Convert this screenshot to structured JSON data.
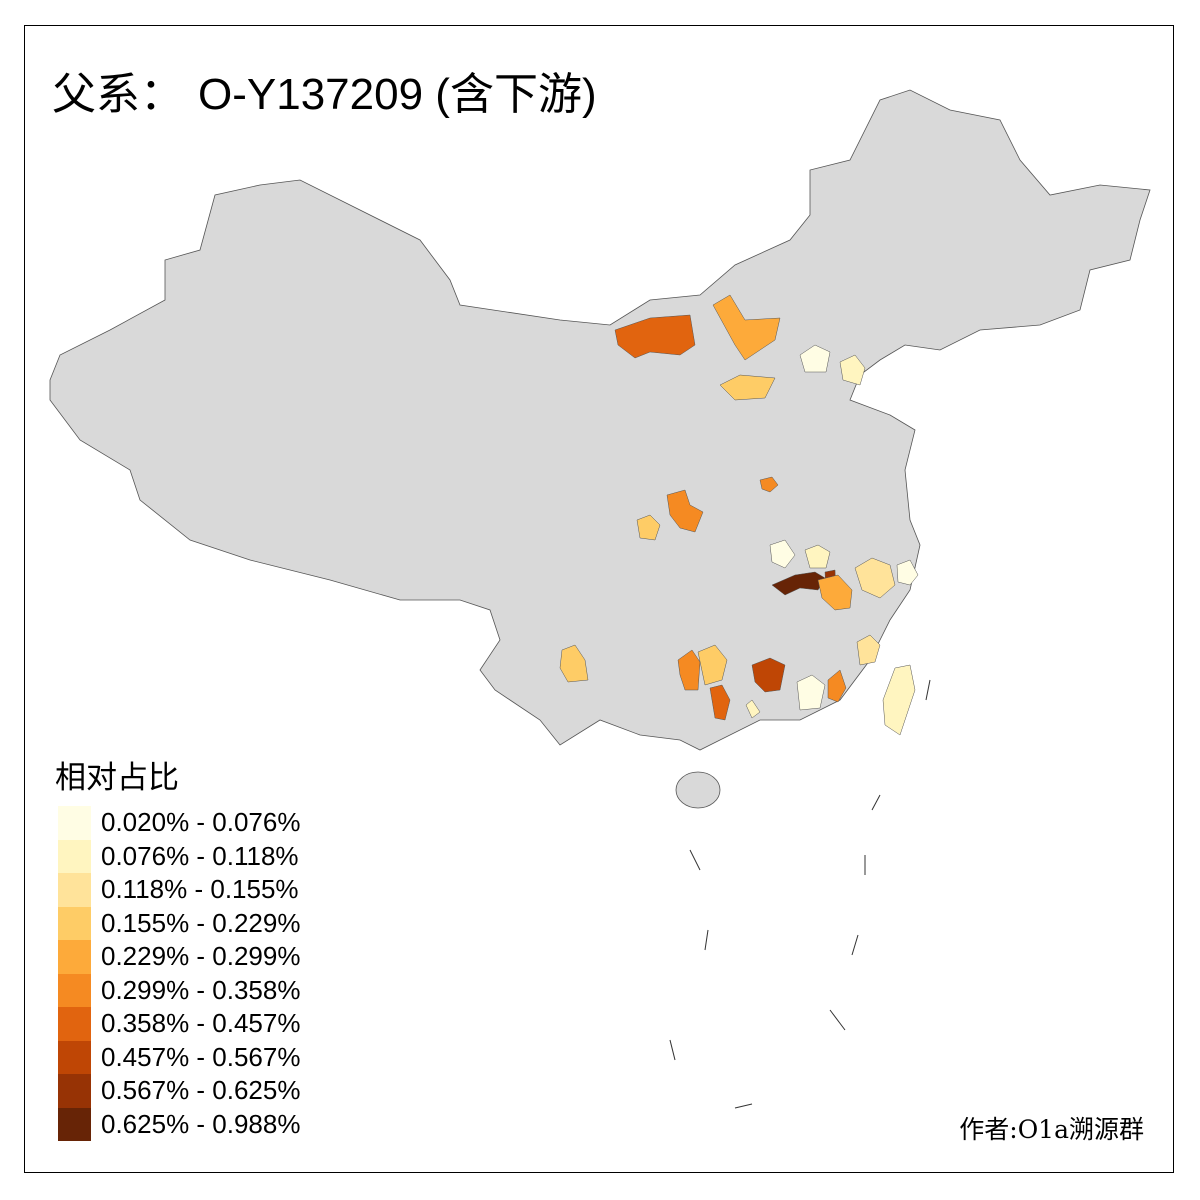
{
  "title": {
    "prefix": "父系：",
    "haplogroup": "O-Y137209",
    "suffix": " (含下游)"
  },
  "legend": {
    "title": "相对占比",
    "classes": [
      {
        "label": "0.020% - 0.076%",
        "color": "#FFFDE4"
      },
      {
        "label": "0.076% - 0.118%",
        "color": "#FFF5C0"
      },
      {
        "label": "0.118% - 0.155%",
        "color": "#FFE39A"
      },
      {
        "label": "0.155% - 0.229%",
        "color": "#FECC66"
      },
      {
        "label": "0.229% - 0.299%",
        "color": "#FDAA3A"
      },
      {
        "label": "0.299% - 0.358%",
        "color": "#F58A22"
      },
      {
        "label": "0.358% - 0.457%",
        "color": "#E1640F"
      },
      {
        "label": "0.457% - 0.567%",
        "color": "#BF4605"
      },
      {
        "label": "0.567% - 0.625%",
        "color": "#973305"
      },
      {
        "label": "0.625% - 0.988%",
        "color": "#672406"
      }
    ]
  },
  "map": {
    "no_data_color": "#D9D9D9",
    "border_color": "#555555",
    "regions": [
      {
        "class": 6
      },
      {
        "class": 4
      },
      {
        "class": 3
      },
      {
        "class": 0
      },
      {
        "class": 1
      },
      {
        "class": 5
      },
      {
        "class": 5
      },
      {
        "class": 3
      },
      {
        "class": 0
      },
      {
        "class": 1
      },
      {
        "class": 9
      },
      {
        "class": 8
      },
      {
        "class": 4
      },
      {
        "class": 2
      },
      {
        "class": 0
      },
      {
        "class": 2
      },
      {
        "class": 3
      },
      {
        "class": 5
      },
      {
        "class": 3
      },
      {
        "class": 6
      },
      {
        "class": 7
      },
      {
        "class": 0
      },
      {
        "class": 5
      },
      {
        "class": 1
      },
      {
        "class": 1
      }
    ]
  },
  "credit": "作者:O1a溯源群"
}
